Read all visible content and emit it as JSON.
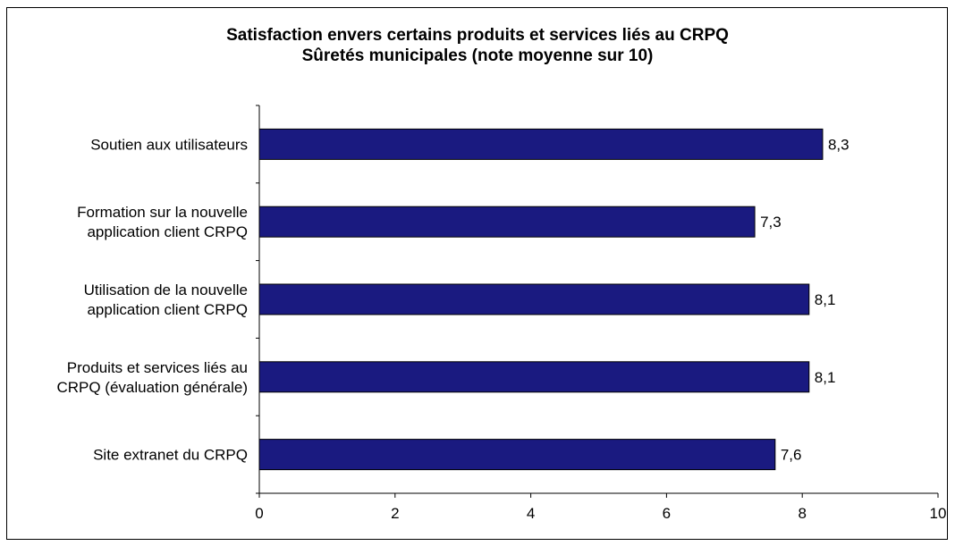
{
  "chart_data": {
    "type": "bar",
    "orientation": "horizontal",
    "title": "Satisfaction envers certains produits et services liés au CRPQ",
    "subtitle": "Sûretés municipales (note moyenne sur 10)",
    "categories": [
      [
        "Soutien aux utilisateurs"
      ],
      [
        "Formation sur la nouvelle",
        "application client CRPQ"
      ],
      [
        "Utilisation de la nouvelle",
        "application client CRPQ"
      ],
      [
        "Produits et services liés au",
        "CRPQ (évaluation générale)"
      ],
      [
        "Site extranet du CRPQ"
      ]
    ],
    "values": [
      8.3,
      7.3,
      8.1,
      8.1,
      7.6
    ],
    "data_labels": [
      "8,3",
      "7,3",
      "8,1",
      "8,1",
      "7,6"
    ],
    "xlim": [
      0,
      10
    ],
    "x_ticks": [
      0,
      2,
      4,
      6,
      8,
      10
    ],
    "x_tick_labels": [
      "0",
      "2",
      "4",
      "6",
      "8",
      "10"
    ],
    "xlabel": "",
    "ylabel": "",
    "grid": false,
    "legend": "none",
    "bar_color": "#1a1a80",
    "bar_edge_color": "#000000"
  }
}
